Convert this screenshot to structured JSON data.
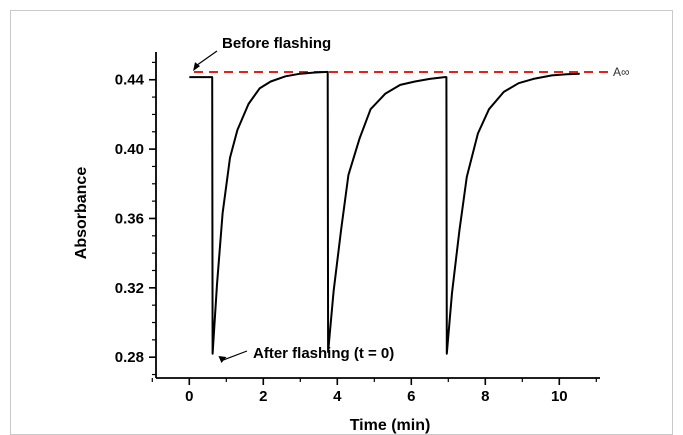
{
  "chart_data": {
    "type": "line",
    "title": "",
    "xlabel": "Time (min)",
    "ylabel": "Absorbance",
    "xlim": [
      -0.9,
      11.1
    ],
    "ylim": [
      0.268,
      0.456
    ],
    "x_ticks": [
      0,
      2,
      4,
      6,
      8,
      10
    ],
    "x_tick_labels": [
      "0",
      "2",
      "4",
      "6",
      "8",
      "10"
    ],
    "y_ticks": [
      0.28,
      0.32,
      0.36,
      0.4,
      0.44
    ],
    "y_tick_labels": [
      "0.28",
      "0.32",
      "0.36",
      "0.40",
      "0.44"
    ],
    "grid": false,
    "reference_line": {
      "label": "A∞",
      "y": 0.4445,
      "color": "#e8201c",
      "style": "dashed"
    },
    "series": [
      {
        "color": "#000000",
        "x": [
          0.0,
          0.62,
          0.63,
          0.75,
          0.9,
          1.1,
          1.3,
          1.6,
          1.9,
          2.2,
          2.6,
          3.0,
          3.4,
          3.74,
          3.75,
          3.9,
          4.1,
          4.3,
          4.6,
          4.9,
          5.3,
          5.7,
          6.1,
          6.5,
          6.9,
          6.95,
          6.96,
          7.1,
          7.3,
          7.5,
          7.8,
          8.1,
          8.5,
          8.9,
          9.3,
          9.8,
          10.2,
          10.55
        ],
        "y": [
          0.4415,
          0.4415,
          0.282,
          0.322,
          0.363,
          0.395,
          0.411,
          0.426,
          0.435,
          0.439,
          0.442,
          0.4435,
          0.4442,
          0.4445,
          0.283,
          0.318,
          0.353,
          0.385,
          0.406,
          0.423,
          0.432,
          0.437,
          0.439,
          0.4405,
          0.4415,
          0.4415,
          0.282,
          0.317,
          0.353,
          0.384,
          0.409,
          0.423,
          0.433,
          0.438,
          0.4405,
          0.4425,
          0.4432,
          0.4435
        ]
      }
    ],
    "annotations": [
      {
        "text": "Before flashing",
        "points_to": [
          0.1,
          0.4415
        ]
      },
      {
        "text": "After flashing (t = 0)",
        "points_to": [
          0.68,
          0.283
        ]
      }
    ]
  }
}
